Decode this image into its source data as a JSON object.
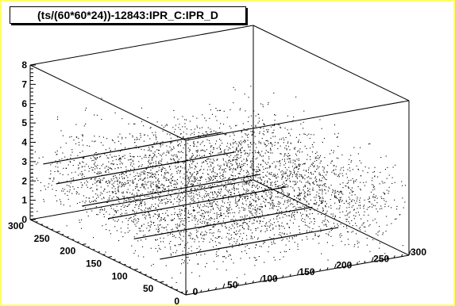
{
  "chart_data": {
    "type": "scatter",
    "dimension": "3d",
    "title": "(ts/(60*60*24))-12843:IPR_C:IPR_D",
    "xlabel": "",
    "ylabel": "",
    "zlabel": "",
    "x_axis": {
      "range": [
        0,
        300
      ],
      "tick_labels": [
        "0",
        "50",
        "100",
        "150",
        "200",
        "250",
        "300"
      ]
    },
    "y_axis": {
      "range": [
        0,
        300
      ],
      "tick_labels": [
        "0",
        "50",
        "100",
        "150",
        "200",
        "250",
        "300"
      ]
    },
    "z_axis": {
      "range": [
        0,
        8
      ],
      "tick_labels": [
        "0",
        "1",
        "2",
        "3",
        "4",
        "5",
        "6",
        "7",
        "8"
      ]
    },
    "marker": "dot",
    "marker_color": "#000000",
    "point_cloud": {
      "approx_count": 4000,
      "x_range": [
        0,
        300
      ],
      "y_range": [
        0,
        300
      ],
      "z_center": 2.6,
      "z_spread": 1.1
    },
    "line_segments": [
      {
        "x": [
          0,
          240
        ],
        "y": [
          150,
          150
        ],
        "z": [
          2.0,
          2.0
        ]
      },
      {
        "x": [
          0,
          240
        ],
        "y": [
          200,
          200
        ],
        "z": [
          2.0,
          2.0
        ]
      },
      {
        "x": [
          0,
          240
        ],
        "y": [
          100,
          100
        ],
        "z": [
          1.6,
          1.6
        ]
      },
      {
        "x": [
          0,
          240
        ],
        "y": [
          50,
          50
        ],
        "z": [
          1.2,
          1.2
        ]
      },
      {
        "x": [
          0,
          240
        ],
        "y": [
          250,
          250
        ],
        "z": [
          2.5,
          2.5
        ]
      },
      {
        "x": [
          0,
          240
        ],
        "y": [
          275,
          275
        ],
        "z": [
          3.2,
          3.2
        ]
      }
    ],
    "grid": false,
    "frame_color": "#ffff66"
  }
}
